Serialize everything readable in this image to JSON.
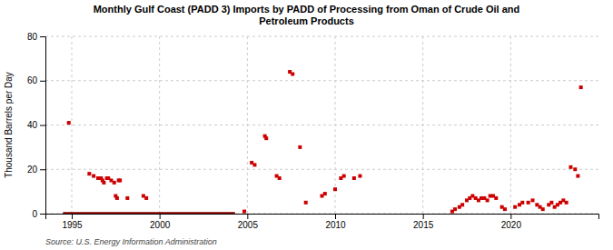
{
  "chart_data": {
    "type": "scatter",
    "title": "Monthly Gulf Coast (PADD 3) Imports by PADD of Processing from Oman of Crude Oil and\nPetroleum Products",
    "ylabel": "Thousand Barrels per Day",
    "source": "Source: U.S. Energy Information Administration",
    "xlim": [
      1993.5,
      2025.0
    ],
    "xticks": [
      1995,
      2000,
      2005,
      2010,
      2015,
      2020
    ],
    "ylim": [
      0,
      80
    ],
    "yticks": [
      0,
      20,
      40,
      60,
      80
    ],
    "grid": true,
    "series": [
      {
        "type": "line",
        "color": "#8b0000",
        "line_style": "solid",
        "x": [
          1994.5,
          2004.3
        ],
        "values": [
          0,
          0
        ]
      },
      {
        "type": "scatter",
        "color": "#cc0000",
        "marker": "square",
        "x": [
          1994.83,
          1996.0,
          1996.25,
          1996.5,
          1996.67,
          1996.75,
          1996.83,
          1997.0,
          1997.08,
          1997.25,
          1997.42,
          1997.5,
          1997.58,
          1997.67,
          1997.75,
          1998.17,
          1999.08,
          1999.25,
          2004.83,
          2005.25,
          2005.42,
          2006.0,
          2006.08,
          2006.67,
          2006.83,
          2007.42,
          2007.58,
          2008.0,
          2008.33,
          2009.25,
          2009.42,
          2010.0,
          2010.33,
          2010.5,
          2011.08,
          2011.42,
          2016.67,
          2016.83,
          2017.08,
          2017.25,
          2017.5,
          2017.67,
          2017.83,
          2018.0,
          2018.17,
          2018.33,
          2018.5,
          2018.67,
          2018.83,
          2019.0,
          2019.17,
          2019.5,
          2019.67,
          2020.25,
          2020.5,
          2020.67,
          2021.0,
          2021.25,
          2021.5,
          2021.67,
          2021.83,
          2022.17,
          2022.33,
          2022.5,
          2022.67,
          2022.83,
          2023.0,
          2023.17,
          2023.42,
          2023.67,
          2023.83,
          2024.0
        ],
        "values": [
          41,
          18,
          17,
          16,
          16,
          15,
          14,
          16,
          16,
          15,
          14,
          8,
          7,
          15,
          15,
          7,
          8,
          7,
          1,
          23,
          22,
          35,
          34,
          17,
          16,
          64,
          63,
          30,
          5,
          8,
          9,
          11,
          16,
          17,
          16,
          17,
          1,
          2,
          3,
          4,
          6,
          7,
          8,
          7,
          6,
          7,
          7,
          6,
          8,
          8,
          7,
          3,
          2,
          3,
          4,
          5,
          5,
          6,
          4,
          3,
          2,
          4,
          5,
          3,
          4,
          5,
          6,
          5,
          21,
          20,
          17,
          57
        ]
      }
    ]
  }
}
